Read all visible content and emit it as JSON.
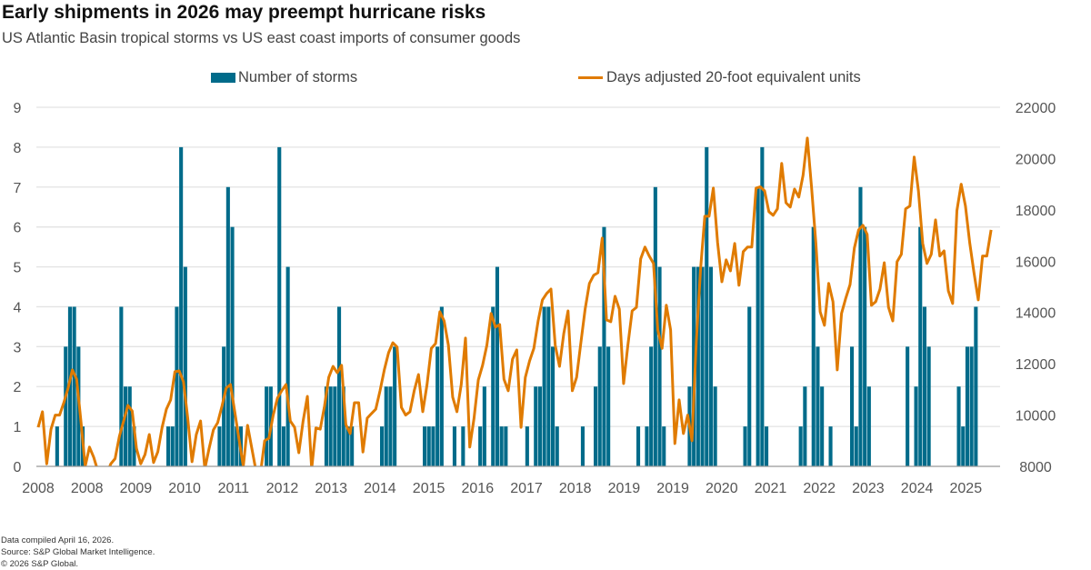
{
  "header": {
    "title": "Early shipments in 2026 may preempt hurricane risks",
    "subtitle": "US Atlantic Basin tropical storms vs US east coast imports of consumer goods"
  },
  "footer": {
    "line1": "Data compiled April 16, 2026.",
    "line2": "Source: S&P Global Market Intelligence.",
    "line3": "© 2026 S&P Global."
  },
  "colors": {
    "storms": "#006b8a",
    "teu": "#e07b00",
    "grid": "#e3e3e3",
    "axis": "#999999"
  },
  "chart_data": {
    "type": "bar+line",
    "title": "Early shipments in 2026 may preempt hurricane risks",
    "legend_position": "top-center",
    "grid": true,
    "x_tick_labels": [
      "2008",
      "2008",
      "2009",
      "2010",
      "2011",
      "2012",
      "2013",
      "2014",
      "2015",
      "2016",
      "2017",
      "2018",
      "2019",
      "2019",
      "2020",
      "2021",
      "2022",
      "2023",
      "2024",
      "2025"
    ],
    "left_axis": {
      "ylim": [
        0,
        9
      ],
      "ticks": [
        "0",
        "1",
        "2",
        "3",
        "4",
        "5",
        "6",
        "7",
        "8",
        "9"
      ]
    },
    "right_axis": {
      "ylim": [
        8000,
        22000
      ],
      "ticks": [
        "8000",
        "10000",
        "12000",
        "14000",
        "16000",
        "18000",
        "20000",
        "22000"
      ]
    },
    "series": [
      {
        "name": "Number of storms",
        "type": "bar",
        "axis": "left",
        "values": [
          0,
          0,
          0,
          0,
          1,
          0,
          3,
          4,
          4,
          3,
          1,
          0,
          0,
          0,
          0,
          0,
          0,
          0,
          0,
          4,
          2,
          2,
          1,
          0,
          0,
          0,
          0,
          0,
          0,
          0,
          1,
          1,
          4,
          8,
          5,
          0,
          0,
          0,
          0,
          0,
          0,
          0,
          1,
          3,
          7,
          6,
          1,
          1,
          0,
          0,
          0,
          0,
          0,
          2,
          2,
          0,
          8,
          1,
          5,
          0,
          0,
          0,
          0,
          0,
          0,
          0,
          0,
          2,
          2,
          2,
          4,
          2,
          1,
          1,
          0,
          0,
          0,
          0,
          0,
          0,
          1,
          2,
          2,
          3,
          0,
          0,
          0,
          0,
          0,
          0,
          1,
          1,
          1,
          3,
          4,
          0,
          0,
          1,
          0,
          1,
          0,
          0,
          0,
          1,
          2,
          0,
          4,
          5,
          1,
          1,
          0,
          0,
          0,
          0,
          1,
          0,
          2,
          2,
          4,
          4,
          3,
          1,
          0,
          0,
          0,
          0,
          0,
          1,
          0,
          0,
          2,
          3,
          6,
          3,
          0,
          0,
          0,
          0,
          0,
          0,
          1,
          0,
          1,
          3,
          7,
          5,
          1,
          0,
          0,
          0,
          0,
          0,
          2,
          5,
          5,
          5,
          8,
          5,
          2,
          0,
          0,
          0,
          0,
          0,
          0,
          1,
          4,
          0,
          7,
          8,
          1,
          0,
          0,
          0,
          0,
          0,
          0,
          0,
          1,
          2,
          0,
          6,
          3,
          2,
          0,
          1,
          0,
          0,
          0,
          0,
          3,
          1,
          7,
          6,
          2,
          0,
          0,
          0,
          0,
          0,
          0,
          0,
          0,
          3,
          0,
          2,
          6,
          4,
          3,
          0,
          0,
          0,
          0,
          0,
          0,
          2,
          1,
          3,
          3,
          4,
          0,
          0,
          0,
          0
        ]
      },
      {
        "name": "Days adjusted 20-foot equivalent units",
        "type": "line",
        "axis": "right",
        "values": [
          9525,
          10130,
          8100,
          9450,
          10000,
          10000,
          10480,
          11050,
          11760,
          11400,
          9770,
          8000,
          8750,
          8350,
          7800,
          7600,
          7700,
          8100,
          8300,
          9170,
          9770,
          10380,
          10160,
          8700,
          8100,
          8460,
          9240,
          8150,
          8570,
          9520,
          10230,
          10590,
          11690,
          11720,
          11300,
          9880,
          8180,
          9240,
          9770,
          7900,
          8700,
          9420,
          9700,
          10340,
          11050,
          11190,
          10130,
          9060,
          8000,
          9600,
          8700,
          7800,
          7700,
          9000,
          9100,
          10000,
          10660,
          10950,
          11190,
          9770,
          9525,
          8530,
          9770,
          10730,
          7900,
          9500,
          9450,
          10340,
          11470,
          11900,
          11650,
          11940,
          9630,
          9280,
          10480,
          10480,
          8560,
          9880,
          10060,
          10230,
          10950,
          11760,
          12430,
          12820,
          12650,
          10300,
          10000,
          10130,
          10950,
          11580,
          10130,
          11190,
          12600,
          12790,
          14030,
          13670,
          12720,
          10700,
          10130,
          11190,
          13000,
          8750,
          9880,
          11370,
          11940,
          12720,
          13960,
          13430,
          13530,
          11400,
          10950,
          12180,
          12540,
          9520,
          11470,
          12110,
          12600,
          13670,
          14490,
          14740,
          14910,
          12720,
          11900,
          13180,
          14060,
          10950,
          11470,
          12820,
          14130,
          15130,
          15450,
          15550,
          16900,
          13710,
          13640,
          14630,
          14130,
          11230,
          12720,
          14060,
          14200,
          16090,
          16550,
          16200,
          15910,
          13320,
          12600,
          14280,
          13320,
          8890,
          10590,
          9280,
          10000,
          9000,
          12820,
          15660,
          17750,
          17750,
          18850,
          16720,
          15200,
          16050,
          15620,
          16690,
          15060,
          16370,
          16550,
          16550,
          18850,
          18900,
          18740,
          17930,
          17790,
          18040,
          19810,
          18280,
          18110,
          18810,
          18500,
          19350,
          20800,
          18850,
          16690,
          14030,
          13500,
          15130,
          14420,
          11760,
          13960,
          14560,
          15090,
          16510,
          17220,
          17400,
          17040,
          14280,
          14420,
          14910,
          15940,
          14200,
          13670,
          15980,
          16270,
          18040,
          18150,
          20060,
          18740,
          16690,
          15910,
          16270,
          17610,
          16200,
          16400,
          14840,
          14350,
          17970,
          19000,
          18150,
          16720,
          15550,
          14490,
          16200,
          16200,
          17220
        ]
      }
    ]
  }
}
